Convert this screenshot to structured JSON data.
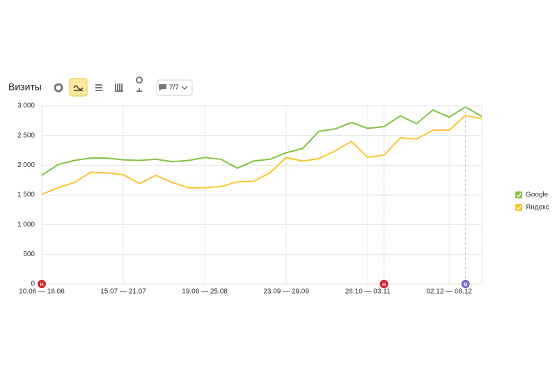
{
  "chart_data": {
    "type": "line",
    "title": "Визиты",
    "categories": [
      "10.06 — 16.06",
      null,
      null,
      null,
      null,
      "15.07 — 21.07",
      null,
      null,
      null,
      null,
      "19.08 — 25.08",
      null,
      null,
      null,
      null,
      "23.09 — 29.09",
      null,
      null,
      null,
      null,
      "28.10 — 03.11",
      null,
      null,
      null,
      null,
      "02.12 — 08.12",
      null,
      null
    ],
    "series": [
      {
        "name": "Google",
        "color": "#7fc241",
        "values": [
          1830,
          2010,
          2080,
          2120,
          2120,
          2090,
          2080,
          2100,
          2060,
          2080,
          2130,
          2100,
          1950,
          2070,
          2100,
          2210,
          2280,
          2570,
          2610,
          2720,
          2620,
          2650,
          2830,
          2700,
          2930,
          2810,
          2980,
          2820
        ]
      },
      {
        "name": "Яндекс",
        "color": "#fcc42b",
        "values": [
          1510,
          1620,
          1710,
          1880,
          1870,
          1840,
          1690,
          1830,
          1710,
          1620,
          1620,
          1640,
          1720,
          1730,
          1870,
          2130,
          2070,
          2110,
          2240,
          2400,
          2130,
          2170,
          2460,
          2440,
          2590,
          2590,
          2840,
          2780
        ]
      }
    ],
    "ylim": [
      0,
      3000
    ],
    "yticks": [
      0,
      500,
      {
        "value": 1000,
        "label": "1 000"
      },
      {
        "value": 1500,
        "label": "1 500"
      },
      {
        "value": 2000,
        "label": "2 000"
      },
      {
        "value": 2500,
        "label": "2 500"
      },
      {
        "value": 3000,
        "label": "3 000"
      }
    ],
    "grid": true,
    "legend": "right",
    "annotations": [
      "Н",
      "Н",
      "М"
    ]
  },
  "toolbar": {
    "counter": "7/7"
  }
}
